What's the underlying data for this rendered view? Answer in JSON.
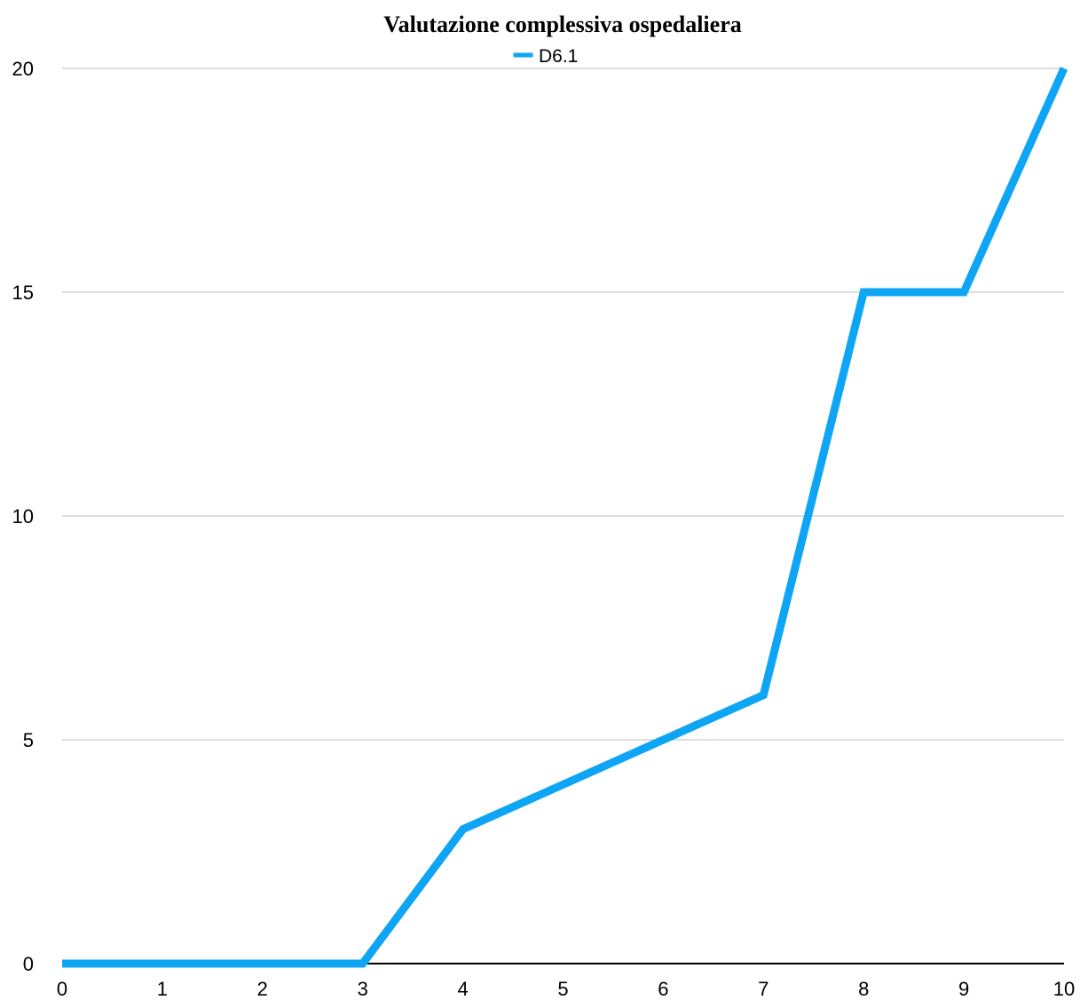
{
  "chart_data": {
    "type": "line",
    "title": "Valutazione complessiva ospedaliera",
    "xlabel": "",
    "ylabel": "",
    "x": [
      0,
      1,
      2,
      3,
      4,
      5,
      6,
      7,
      8,
      9,
      10
    ],
    "x_ticks": [
      "0",
      "1",
      "2",
      "3",
      "4",
      "5",
      "6",
      "7",
      "8",
      "9",
      "10"
    ],
    "y_ticks": [
      "0",
      "5",
      "10",
      "15",
      "20"
    ],
    "xlim": [
      0,
      10
    ],
    "ylim": [
      0,
      20
    ],
    "grid": true,
    "legend_position": "top-center",
    "series": [
      {
        "name": "D6.1",
        "color": "#0ea5f5",
        "values": [
          0,
          0,
          0,
          0,
          3,
          4,
          5,
          6,
          15,
          15,
          20
        ]
      }
    ]
  }
}
